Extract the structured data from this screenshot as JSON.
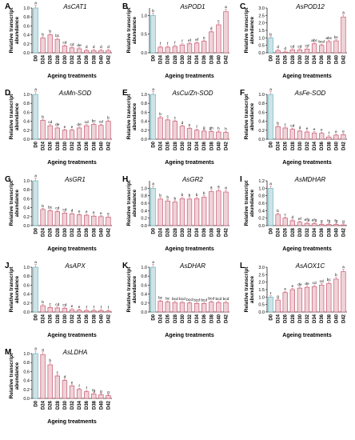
{
  "colors": {
    "control_fill": "#cfe3e7",
    "control_stroke": "#5fb6c1",
    "bar_fill": "#efd3d9",
    "bar_stroke": "#c7586e",
    "axis": "#222222",
    "error": "#d07a8a"
  },
  "categories": [
    "D0",
    "D24",
    "D26",
    "D28",
    "D30",
    "D32",
    "D34",
    "D36",
    "D38",
    "D40",
    "D42"
  ],
  "common_xlabel": "Ageing treatments",
  "common_ylabel_line1": "Relative transcript",
  "common_ylabel_line2": "abundance",
  "chart_data": [
    {
      "panel": "A",
      "type": "bar",
      "title": "AsCAT1",
      "categories": [
        "D0",
        "D24",
        "D26",
        "D28",
        "D30",
        "D32",
        "D34",
        "D36",
        "D38",
        "D40",
        "D42"
      ],
      "values": [
        1.0,
        0.33,
        0.4,
        0.3,
        0.15,
        0.11,
        0.09,
        0.05,
        0.05,
        0.05,
        0.05
      ],
      "letters": [
        "a",
        "b",
        "b",
        "bc",
        "cd",
        "cd",
        "de",
        "d",
        "d",
        "d",
        "d"
      ],
      "ylim": [
        0,
        1.0
      ],
      "yticks": [
        0.0,
        0.2,
        0.4,
        0.6,
        0.8,
        1.0
      ],
      "yticklabels": [
        "0.0",
        "0.2",
        "0.4",
        "0.6",
        "0.8",
        "1.0"
      ]
    },
    {
      "panel": "B",
      "type": "bar",
      "title": "AsPOD1",
      "categories": [
        "D0",
        "D24",
        "D26",
        "D28",
        "D30",
        "D32",
        "D34",
        "D36",
        "D38",
        "D40",
        "D42"
      ],
      "values": [
        1.0,
        0.15,
        0.15,
        0.17,
        0.21,
        0.24,
        0.26,
        0.31,
        0.56,
        0.75,
        1.1
      ],
      "letters": [
        "b",
        "f",
        "f",
        "f",
        "f",
        "ef",
        "ef",
        "e",
        "d",
        "c",
        "a"
      ],
      "ylim": [
        0,
        1.2
      ],
      "yticks": [
        0.0,
        0.5,
        1.0
      ],
      "yticklabels": [
        "0.0",
        "0.5",
        "1.0"
      ]
    },
    {
      "panel": "C",
      "type": "bar",
      "title": "AsPOD12",
      "categories": [
        "D0",
        "D24",
        "D26",
        "D28",
        "D30",
        "D32",
        "D34",
        "D36",
        "D38",
        "D40",
        "D42"
      ],
      "values": [
        1.0,
        0.15,
        0.05,
        0.2,
        0.2,
        0.25,
        0.6,
        0.5,
        0.75,
        0.8,
        2.4
      ],
      "letters": [
        "b",
        "d",
        "d",
        "cd",
        "cd",
        "cd",
        "abc",
        "bcd",
        "abc",
        "bc",
        "a"
      ],
      "ylim": [
        0,
        3.0
      ],
      "yticks": [
        0.0,
        0.5,
        1.0,
        1.5,
        2.0,
        2.5,
        3.0
      ],
      "yticklabels": [
        "0.0",
        "0.5",
        "1.0",
        "1.5",
        "2.0",
        "2.5",
        "3.0"
      ]
    },
    {
      "panel": "D",
      "type": "bar",
      "title": "AsMn-SOD",
      "categories": [
        "D0",
        "D24",
        "D26",
        "D28",
        "D30",
        "D32",
        "D34",
        "D36",
        "D38",
        "D40",
        "D42"
      ],
      "values": [
        1.0,
        0.42,
        0.3,
        0.25,
        0.2,
        0.2,
        0.25,
        0.3,
        0.33,
        0.31,
        0.4
      ],
      "letters": [
        "a",
        "b",
        "cd",
        "de",
        "e",
        "e",
        "de",
        "cd",
        "bc",
        "cd",
        "b"
      ],
      "ylim": [
        0,
        1.0
      ],
      "yticks": [
        0.0,
        0.2,
        0.4,
        0.6,
        0.8,
        1.0
      ],
      "yticklabels": [
        "0.0",
        "0.2",
        "0.4",
        "0.6",
        "0.8",
        "1.0"
      ]
    },
    {
      "panel": "E",
      "type": "bar",
      "title": "AsCu/Zn-SOD",
      "categories": [
        "D0",
        "D24",
        "D26",
        "D28",
        "D30",
        "D32",
        "D34",
        "D36",
        "D38",
        "D40",
        "D42"
      ],
      "values": [
        1.0,
        0.48,
        0.43,
        0.4,
        0.29,
        0.24,
        0.2,
        0.18,
        0.17,
        0.16,
        0.15
      ],
      "letters": [
        "a",
        "b",
        "c",
        "c",
        "d",
        "e",
        "f",
        "g",
        "gh",
        "h",
        "h"
      ],
      "ylim": [
        0,
        1.0
      ],
      "yticks": [
        0.0,
        0.2,
        0.4,
        0.6,
        0.8,
        1.0
      ],
      "yticklabels": [
        "0.0",
        "0.2",
        "0.4",
        "0.6",
        "0.8",
        "1.0"
      ]
    },
    {
      "panel": "F",
      "type": "bar",
      "title": "AsFe-SOD",
      "categories": [
        "D0",
        "D24",
        "D26",
        "D28",
        "D30",
        "D32",
        "D34",
        "D36",
        "D38",
        "D40",
        "D42"
      ],
      "values": [
        1.0,
        0.28,
        0.25,
        0.22,
        0.18,
        0.16,
        0.14,
        0.13,
        0.05,
        0.09,
        0.1
      ],
      "letters": [
        "a",
        "b",
        "c",
        "cd",
        "d",
        "e",
        "e",
        "e",
        "f",
        "e",
        "e"
      ],
      "ylim": [
        0,
        1.0
      ],
      "yticks": [
        0.0,
        0.2,
        0.4,
        0.6,
        0.8,
        1.0
      ],
      "yticklabels": [
        "0.0",
        "0.2",
        "0.4",
        "0.6",
        "0.8",
        "1.0"
      ]
    },
    {
      "panel": "G",
      "type": "bar",
      "title": "AsGR1",
      "categories": [
        "D0",
        "D24",
        "D26",
        "D28",
        "D30",
        "D32",
        "D34",
        "D36",
        "D38",
        "D40",
        "D42"
      ],
      "values": [
        1.0,
        0.36,
        0.33,
        0.31,
        0.28,
        0.26,
        0.24,
        0.23,
        0.21,
        0.2,
        0.19
      ],
      "letters": [
        "a",
        "b",
        "bc",
        "cd",
        "cd",
        "d",
        "e",
        "e",
        "e",
        "e",
        "e"
      ],
      "ylim": [
        0,
        1.0
      ],
      "yticks": [
        0.0,
        0.2,
        0.4,
        0.6,
        0.8,
        1.0
      ],
      "yticklabels": [
        "0.0",
        "0.2",
        "0.4",
        "0.6",
        "0.8",
        "1.0"
      ]
    },
    {
      "panel": "H",
      "type": "bar",
      "title": "AsGR2",
      "categories": [
        "D0",
        "D24",
        "D26",
        "D28",
        "D30",
        "D32",
        "D34",
        "D36",
        "D38",
        "D40",
        "D42"
      ],
      "values": [
        1.0,
        0.71,
        0.66,
        0.63,
        0.72,
        0.71,
        0.72,
        0.76,
        0.91,
        0.93,
        0.9
      ],
      "letters": [
        "a",
        "b",
        "b",
        "b",
        "b",
        "b",
        "b",
        "b",
        "a",
        "a",
        "a"
      ],
      "ylim": [
        0,
        1.2
      ],
      "yticks": [
        0.0,
        0.2,
        0.4,
        0.6,
        0.8,
        1.0
      ],
      "yticklabels": [
        "0.0",
        "0.2",
        "0.4",
        "0.6",
        "0.8",
        "1.0"
      ]
    },
    {
      "panel": "I",
      "type": "bar",
      "title": "AsMDHAR",
      "categories": [
        "D0",
        "D24",
        "D26",
        "D28",
        "D30",
        "D32",
        "D34",
        "D36",
        "D38",
        "D40",
        "D42"
      ],
      "values": [
        1.0,
        0.3,
        0.2,
        0.13,
        0.09,
        0.06,
        0.05,
        0.03,
        0.03,
        0.03,
        0.02
      ],
      "letters": [
        "a",
        "b",
        "c",
        "d",
        "ef",
        "efg",
        "efg",
        "g",
        "fg",
        "fg",
        "g"
      ],
      "ylim": [
        0,
        1.2
      ],
      "yticks": [
        0.0,
        0.2,
        0.4,
        0.6,
        0.8,
        1.0,
        1.2
      ],
      "yticklabels": [
        "0.0",
        "0.2",
        "0.4",
        "0.6",
        "0.8",
        "1.0",
        "1.2"
      ]
    },
    {
      "panel": "J",
      "type": "bar",
      "title": "AsAPX",
      "categories": [
        "D0",
        "D24",
        "D26",
        "D28",
        "D30",
        "D32",
        "D34",
        "D36",
        "D38",
        "D40",
        "D42"
      ],
      "values": [
        1.0,
        0.14,
        0.1,
        0.09,
        0.08,
        0.05,
        0.04,
        0.03,
        0.03,
        0.03,
        0.02
      ],
      "letters": [
        "a",
        "b",
        "c",
        "cd",
        "cd",
        "e",
        "e",
        "f",
        "f",
        "f",
        "f"
      ],
      "ylim": [
        0,
        1.0
      ],
      "yticks": [
        0.0,
        0.2,
        0.4,
        0.6,
        0.8,
        1.0
      ],
      "yticklabels": [
        "0.0",
        "0.2",
        "0.4",
        "0.6",
        "0.8",
        "1.0"
      ]
    },
    {
      "panel": "K",
      "type": "bar",
      "title": "AsDHAR",
      "categories": [
        "D0",
        "D24",
        "D26",
        "D28",
        "D30",
        "D32",
        "D34",
        "D36",
        "D38",
        "D40",
        "D42"
      ],
      "values": [
        1.0,
        0.24,
        0.22,
        0.21,
        0.21,
        0.2,
        0.19,
        0.19,
        0.22,
        0.21,
        0.21
      ],
      "letters": [
        "a",
        "bc",
        "bc",
        "bcd",
        "bcd",
        "bcd",
        "bcd",
        "bcd",
        "bcd",
        "bcd",
        "bcd"
      ],
      "ylim": [
        0,
        1.0
      ],
      "yticks": [
        0.0,
        0.2,
        0.4,
        0.6,
        0.8,
        1.0
      ],
      "yticklabels": [
        "0.0",
        "0.2",
        "0.4",
        "0.6",
        "0.8",
        "1.0"
      ]
    },
    {
      "panel": "L",
      "type": "bar",
      "title": "AsAOX1C",
      "categories": [
        "D0",
        "D24",
        "D26",
        "D28",
        "D30",
        "D32",
        "D34",
        "D36",
        "D38",
        "D40",
        "D42"
      ],
      "values": [
        1.0,
        0.8,
        1.3,
        1.5,
        1.6,
        1.65,
        1.7,
        1.8,
        1.9,
        2.2,
        2.7
      ],
      "letters": [
        "f",
        "g",
        "e",
        "e",
        "de",
        "de",
        "cd",
        "cd",
        "bc",
        "b",
        "a"
      ],
      "ylim": [
        0,
        3.0
      ],
      "yticks": [
        0.0,
        0.5,
        1.0,
        1.5,
        2.0,
        2.5,
        3.0
      ],
      "yticklabels": [
        "0.0",
        "0.5",
        "1.0",
        "1.5",
        "2.0",
        "2.5",
        "3.0"
      ]
    },
    {
      "panel": "M",
      "type": "bar",
      "title": "AsLDHA",
      "categories": [
        "D0",
        "D24",
        "D26",
        "D28",
        "D30",
        "D32",
        "D34",
        "D36",
        "D38",
        "D40",
        "D42"
      ],
      "values": [
        1.0,
        0.98,
        0.75,
        0.5,
        0.4,
        0.28,
        0.2,
        0.15,
        0.1,
        0.08,
        0.06
      ],
      "letters": [
        "a",
        "a",
        "b",
        "c",
        "d",
        "e",
        "f",
        "f",
        "fg",
        "g",
        "g"
      ],
      "ylim": [
        0,
        1.0
      ],
      "yticks": [
        0.0,
        0.2,
        0.4,
        0.6,
        0.8,
        1.0
      ],
      "yticklabels": [
        "0.0",
        "0.2",
        "0.4",
        "0.6",
        "0.8",
        "1.0"
      ]
    }
  ]
}
